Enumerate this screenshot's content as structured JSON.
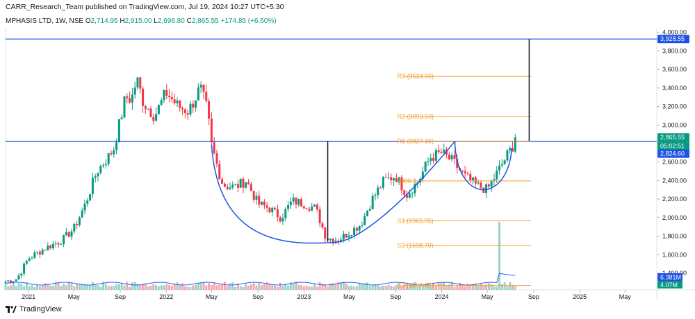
{
  "header": {
    "publisher": "CARR_Research_Team published on TradingView.com, Jul 19, 2024 10:27 UTC+5:30"
  },
  "legend": {
    "symbol": "MPHASIS LTD, 1W, NSE",
    "open_label": "O",
    "open": "2,714.95",
    "high_label": "H",
    "high": "2,915.00",
    "low_label": "L",
    "low": "2,696.80",
    "close_label": "C",
    "close": "2,865.55",
    "change": "+174.85 (+6.50%)"
  },
  "footer": {
    "brand": "TradingView"
  },
  "colors": {
    "up": "#089981",
    "down": "#f23645",
    "blue": "#1e53e5",
    "level": "#f59d2a",
    "volume_ma": "#2962ff",
    "up_vol": "#9bd3cb",
    "down_vol": "#f7a9a7"
  },
  "chart_data": {
    "type": "candlestick",
    "title": "MPHASIS LTD, 1W, NSE",
    "ylim": [
      1250,
      4050
    ],
    "y_ticks": [
      1400,
      1600,
      1800,
      2000,
      2200,
      2400,
      2600,
      2800,
      3000,
      3200,
      3400,
      3600,
      3800,
      4000
    ],
    "y_tick_labels": [
      "1,400.00",
      "1,600.00",
      "1,800.00",
      "2,000.00",
      "2,200.00",
      "2,400.00",
      "2,600.00",
      "2,800.00",
      "3,000.00",
      "3,200.00",
      "3,400.00",
      "3,600.00",
      "3,800.00",
      "4,000.00"
    ],
    "x_labels": [
      {
        "label": "2021",
        "date": "2021-01-01"
      },
      {
        "label": "May",
        "date": "2021-05-01"
      },
      {
        "label": "Sep",
        "date": "2021-09-01"
      },
      {
        "label": "2022",
        "date": "2022-01-01"
      },
      {
        "label": "May",
        "date": "2022-05-01"
      },
      {
        "label": "Sep",
        "date": "2022-09-01"
      },
      {
        "label": "2023",
        "date": "2023-01-01"
      },
      {
        "label": "May",
        "date": "2023-05-01"
      },
      {
        "label": "Sep",
        "date": "2023-09-01"
      },
      {
        "label": "2024",
        "date": "2024-01-01"
      },
      {
        "label": "May",
        "date": "2024-05-01"
      },
      {
        "label": "Sep",
        "date": "2024-09-01"
      },
      {
        "label": "2025",
        "date": "2025-01-01"
      },
      {
        "label": "May",
        "date": "2025-05-01"
      }
    ],
    "series_close": [
      [
        "2020-11-01",
        1310
      ],
      [
        "2020-12-01",
        1340
      ],
      [
        "2021-01-01",
        1560
      ],
      [
        "2021-02-01",
        1640
      ],
      [
        "2021-03-01",
        1700
      ],
      [
        "2021-04-01",
        1760
      ],
      [
        "2021-05-01",
        1880
      ],
      [
        "2021-06-01",
        2150
      ],
      [
        "2021-07-01",
        2500
      ],
      [
        "2021-08-01",
        2660
      ],
      [
        "2021-08-15",
        2750
      ],
      [
        "2021-09-01",
        3050
      ],
      [
        "2021-09-15",
        3300
      ],
      [
        "2021-10-01",
        3280
      ],
      [
        "2021-10-15",
        3500
      ],
      [
        "2021-11-01",
        3250
      ],
      [
        "2021-12-01",
        3100
      ],
      [
        "2022-01-01",
        3350
      ],
      [
        "2022-02-01",
        3200
      ],
      [
        "2022-03-01",
        3150
      ],
      [
        "2022-04-01",
        3400
      ],
      [
        "2022-04-20",
        3150
      ],
      [
        "2022-05-01",
        2780
      ],
      [
        "2022-05-20",
        2500
      ],
      [
        "2022-06-01",
        2350
      ],
      [
        "2022-07-01",
        2330
      ],
      [
        "2022-08-01",
        2400
      ],
      [
        "2022-09-01",
        2150
      ],
      [
        "2022-10-01",
        2100
      ],
      [
        "2022-11-01",
        2000
      ],
      [
        "2022-12-01",
        2180
      ],
      [
        "2023-01-01",
        2150
      ],
      [
        "2023-02-01",
        2100
      ],
      [
        "2023-03-01",
        1780
      ],
      [
        "2023-04-01",
        1760
      ],
      [
        "2023-05-01",
        1840
      ],
      [
        "2023-06-01",
        1930
      ],
      [
        "2023-07-01",
        2200
      ],
      [
        "2023-08-01",
        2400
      ],
      [
        "2023-09-01",
        2450
      ],
      [
        "2023-10-01",
        2250
      ],
      [
        "2023-11-01",
        2400
      ],
      [
        "2023-12-01",
        2650
      ],
      [
        "2024-01-01",
        2700
      ],
      [
        "2024-02-01",
        2600
      ],
      [
        "2024-03-01",
        2450
      ],
      [
        "2024-04-01",
        2350
      ],
      [
        "2024-05-01",
        2300
      ],
      [
        "2024-06-01",
        2520
      ],
      [
        "2024-07-01",
        2730
      ],
      [
        "2024-07-19",
        2865.55
      ]
    ],
    "resistance": [
      {
        "label": "",
        "value": 3928.55
      },
      {
        "label": "",
        "value": 2824.6
      }
    ],
    "levels": [
      {
        "label": "R3",
        "value": 3524.55,
        "text": "R3 (3524.55)"
      },
      {
        "label": "R2",
        "value": 3093.5,
        "text": "R2 (3093.50)"
      },
      {
        "label": "R1",
        "value": 2827.15,
        "text": "R1 (2827.15)"
      },
      {
        "label": "P",
        "value": 2396.1,
        "text": "2396.1"
      },
      {
        "label": "S1",
        "value": 1965.05,
        "text": "S1 (1965.05)"
      },
      {
        "label": "S2",
        "value": 1698.7,
        "text": "S2 (1698.70)"
      },
      {
        "label": "S3",
        "value": 1267.65,
        "text": "S3 (1267.65)"
      }
    ],
    "price_tags": [
      {
        "label": "3,928.55",
        "value": 3928.55,
        "color": "#1e53e5"
      },
      {
        "label": "2,865.55",
        "value": 2865.55,
        "color": "#089981"
      },
      {
        "label": "05:02:51",
        "value": 2775,
        "color": "#089981"
      },
      {
        "label": "2,824.60",
        "value": 2690,
        "color": "#1e53e5"
      }
    ],
    "volume_tags": [
      {
        "label": "6.381M",
        "color": "#1e53e5"
      },
      {
        "label": "4.07M",
        "color": "#089981"
      }
    ],
    "volume_spike": {
      "date": "2024-06-01",
      "label": ""
    }
  }
}
